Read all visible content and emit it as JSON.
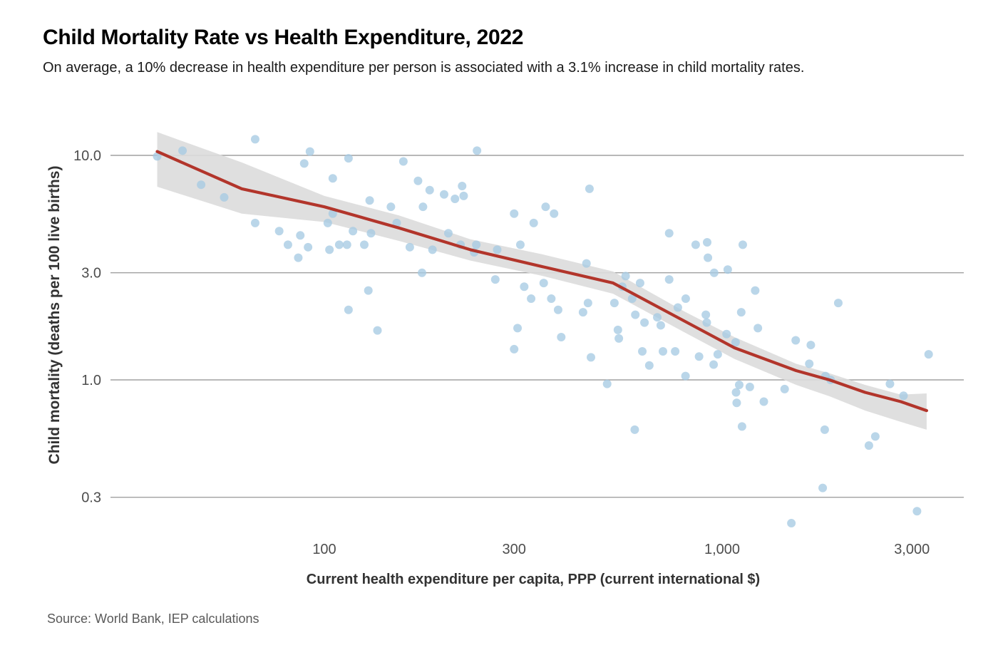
{
  "header": {
    "title": "Child Mortality Rate vs Health Expenditure, 2022",
    "subtitle": "On average, a 10% decrease in health expenditure per person is associated with a 3.1% increase in child mortality rates."
  },
  "footer": {
    "source": "Source: World Bank, IEP calculations"
  },
  "colors": {
    "point": "#a6cbe3",
    "point_opacity": 0.78,
    "trend": "#b2352b",
    "band": "#dcdcdc",
    "band_opacity": 0.9,
    "grid": "#a0a0a0",
    "tick_text": "#4d4d4d",
    "axis_title_text": "#333333"
  },
  "chart_data": {
    "type": "scatter",
    "title": "Child Mortality Rate vs Health Expenditure, 2022",
    "xlabel": "Current health expenditure per capita, PPP (current international $)",
    "ylabel": "Child mortality (deaths per 100 live births)",
    "x_scale": "log",
    "y_scale": "log",
    "xlim": [
      29,
      4050
    ],
    "ylim": [
      0.2,
      13
    ],
    "grid": "horizontal-only",
    "legend": "none",
    "x_ticks": [
      {
        "value": 100,
        "label": "100"
      },
      {
        "value": 300,
        "label": "300"
      },
      {
        "value": 1000,
        "label": "1,000"
      },
      {
        "value": 3000,
        "label": "3,000"
      }
    ],
    "y_ticks": [
      {
        "value": 10,
        "label": "10.0"
      },
      {
        "value": 3,
        "label": "3.0"
      },
      {
        "value": 1,
        "label": "1.0"
      },
      {
        "value": 0.3,
        "label": "0.3"
      }
    ],
    "points": [
      [
        38,
        9.9
      ],
      [
        44,
        10.5
      ],
      [
        67,
        11.8
      ],
      [
        92,
        10.4
      ],
      [
        89,
        9.2
      ],
      [
        115,
        9.7
      ],
      [
        105,
        7.9
      ],
      [
        49,
        7.4
      ],
      [
        56,
        6.5
      ],
      [
        130,
        6.3
      ],
      [
        147,
        5.9
      ],
      [
        105,
        5.5
      ],
      [
        102,
        5.0
      ],
      [
        118,
        4.6
      ],
      [
        131,
        4.5
      ],
      [
        67,
        5.0
      ],
      [
        77,
        4.6
      ],
      [
        87,
        4.4
      ],
      [
        81,
        4.0
      ],
      [
        91,
        3.9
      ],
      [
        86,
        3.5
      ],
      [
        103,
        3.8
      ],
      [
        109,
        4.0
      ],
      [
        114,
        4.0
      ],
      [
        126,
        4.0
      ],
      [
        129,
        2.5
      ],
      [
        115,
        2.05
      ],
      [
        136,
        1.66
      ],
      [
        158,
        9.4
      ],
      [
        172,
        7.7
      ],
      [
        184,
        7.0
      ],
      [
        200,
        6.7
      ],
      [
        213,
        6.4
      ],
      [
        222,
        7.3
      ],
      [
        224,
        6.6
      ],
      [
        242,
        10.5
      ],
      [
        177,
        5.9
      ],
      [
        152,
        5.0
      ],
      [
        164,
        3.9
      ],
      [
        187,
        3.8
      ],
      [
        176,
        3.0
      ],
      [
        205,
        4.5
      ],
      [
        220,
        4.0
      ],
      [
        241,
        4.0
      ],
      [
        238,
        3.7
      ],
      [
        272,
        3.8
      ],
      [
        311,
        4.0
      ],
      [
        300,
        5.5
      ],
      [
        336,
        5.0
      ],
      [
        360,
        5.9
      ],
      [
        378,
        5.5
      ],
      [
        464,
        7.1
      ],
      [
        269,
        2.8
      ],
      [
        318,
        2.6
      ],
      [
        356,
        2.7
      ],
      [
        331,
        2.3
      ],
      [
        372,
        2.3
      ],
      [
        387,
        2.05
      ],
      [
        456,
        3.3
      ],
      [
        460,
        2.2
      ],
      [
        536,
        2.2
      ],
      [
        572,
        2.9
      ],
      [
        561,
        2.6
      ],
      [
        622,
        2.7
      ],
      [
        594,
        2.3
      ],
      [
        736,
        4.5
      ],
      [
        736,
        2.8
      ],
      [
        306,
        1.7
      ],
      [
        394,
        1.55
      ],
      [
        300,
        1.37
      ],
      [
        468,
        1.26
      ],
      [
        447,
        2.0
      ],
      [
        605,
        1.95
      ],
      [
        638,
        1.8
      ],
      [
        687,
        1.9
      ],
      [
        701,
        1.75
      ],
      [
        547,
        1.67
      ],
      [
        550,
        1.53
      ],
      [
        630,
        1.34
      ],
      [
        710,
        1.34
      ],
      [
        762,
        1.34
      ],
      [
        656,
        1.16
      ],
      [
        809,
        1.04
      ],
      [
        514,
        0.96
      ],
      [
        603,
        0.6
      ],
      [
        810,
        2.3
      ],
      [
        774,
        2.1
      ],
      [
        858,
        4.0
      ],
      [
        917,
        4.1
      ],
      [
        921,
        3.5
      ],
      [
        955,
        3.0
      ],
      [
        1033,
        3.1
      ],
      [
        1127,
        4.0
      ],
      [
        910,
        1.95
      ],
      [
        915,
        1.8
      ],
      [
        1117,
        2.0
      ],
      [
        1211,
        2.5
      ],
      [
        1959,
        2.2
      ],
      [
        1230,
        1.7
      ],
      [
        875,
        1.27
      ],
      [
        975,
        1.3
      ],
      [
        952,
        1.17
      ],
      [
        1026,
        1.6
      ],
      [
        1081,
        1.47
      ],
      [
        1104,
        0.95
      ],
      [
        1174,
        0.93
      ],
      [
        1084,
        0.88
      ],
      [
        1088,
        0.79
      ],
      [
        1273,
        0.8
      ],
      [
        1436,
        0.91
      ],
      [
        1531,
        1.5
      ],
      [
        1671,
        1.43
      ],
      [
        1656,
        1.18
      ],
      [
        1819,
        1.04
      ],
      [
        1874,
        1.0
      ],
      [
        1122,
        0.62
      ],
      [
        1811,
        0.6
      ],
      [
        2427,
        0.56
      ],
      [
        2339,
        0.51
      ],
      [
        2642,
        0.96
      ],
      [
        2858,
        0.85
      ],
      [
        3305,
        1.3
      ],
      [
        1790,
        0.33
      ],
      [
        3090,
        0.26
      ],
      [
        1493,
        0.23
      ]
    ],
    "trend": [
      [
        38,
        10.4
      ],
      [
        62,
        7.1
      ],
      [
        100,
        5.9
      ],
      [
        154,
        4.75
      ],
      [
        233,
        3.8
      ],
      [
        352,
        3.2
      ],
      [
        532,
        2.7
      ],
      [
        803,
        1.83
      ],
      [
        1074,
        1.39
      ],
      [
        1535,
        1.1
      ],
      [
        1862,
        1.0
      ],
      [
        2287,
        0.88
      ],
      [
        2812,
        0.8
      ],
      [
        3267,
        0.73
      ]
    ],
    "band": {
      "x": [
        38,
        62,
        100,
        154,
        233,
        352,
        532,
        803,
        1074,
        1535,
        1862,
        2287,
        2812,
        3267
      ],
      "top": [
        12.7,
        9.3,
        6.6,
        5.4,
        4.23,
        3.63,
        3.04,
        2.02,
        1.55,
        1.18,
        1.07,
        0.95,
        0.86,
        0.87
      ],
      "bottom": [
        7.25,
        5.5,
        5.05,
        4.16,
        3.4,
        2.91,
        2.42,
        1.63,
        1.24,
        0.95,
        0.845,
        0.73,
        0.65,
        0.6
      ]
    }
  }
}
